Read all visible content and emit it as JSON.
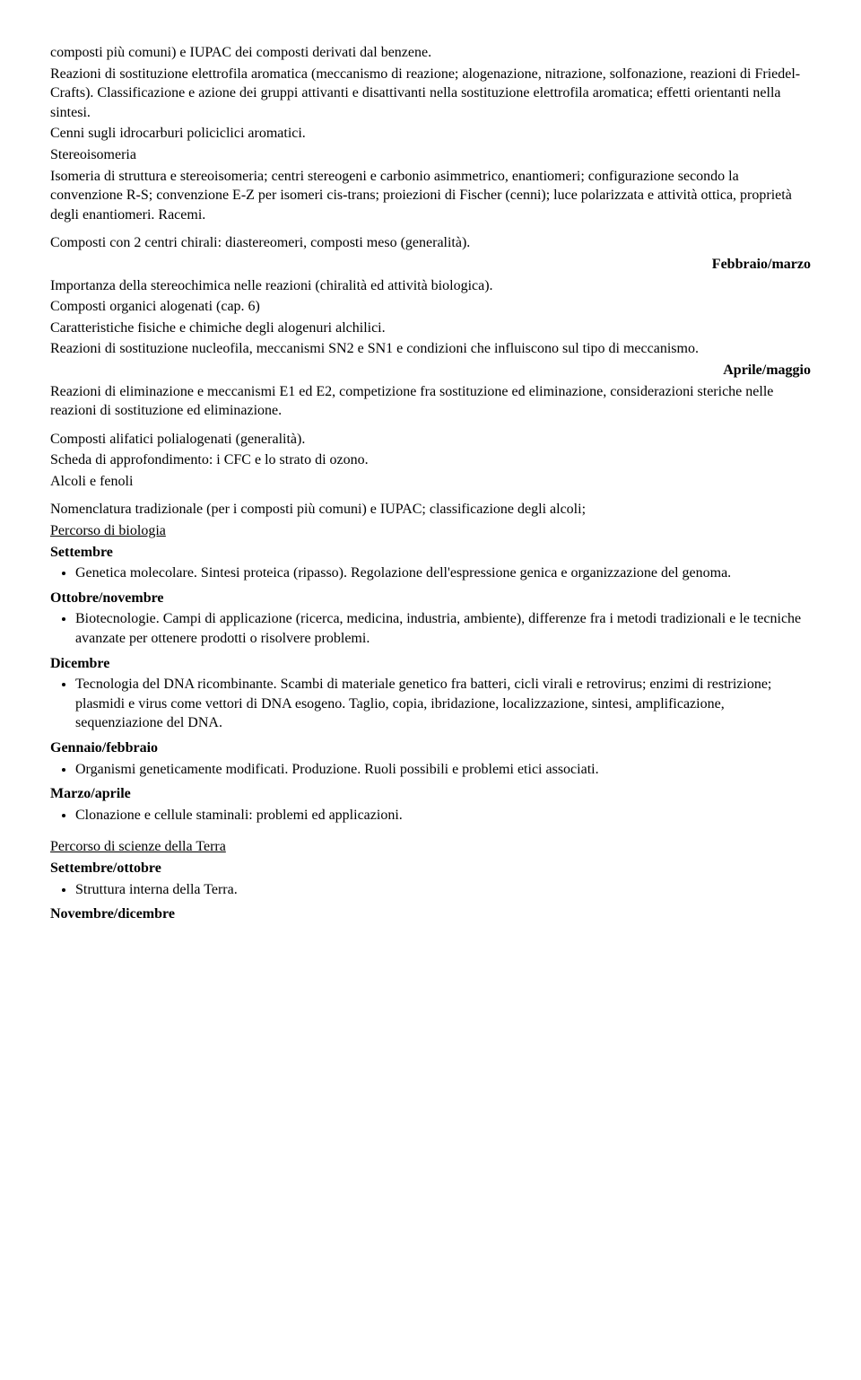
{
  "p1": "composti più comuni) e IUPAC dei composti derivati dal benzene.",
  "p2": "Reazioni di sostituzione elettrofila aromatica (meccanismo di reazione; alogenazione, nitrazione, solfonazione, reazioni di Friedel-Crafts). Classificazione e azione dei gruppi attivanti e disattivanti nella sostituzione elettrofila aromatica; effetti orientanti nella sintesi.",
  "p3": "Cenni sugli idrocarburi policiclici aromatici.",
  "p4": "Stereoisomeria",
  "p5": "Isomeria di struttura e stereoisomeria; centri stereogeni e carbonio asimmetrico, enantiomeri; configurazione secondo la convenzione R-S; convenzione E-Z per isomeri cis-trans; proiezioni di Fischer (cenni); luce polarizzata e attività ottica, proprietà degli enantiomeri. Racemi.",
  "p6": "Composti con 2 centri chirali: diastereomeri, composti meso (generalità).",
  "month1": "Febbraio/marzo",
  "p7": "Importanza della stereochimica nelle reazioni (chiralità ed attività biologica).",
  "p8": "Composti organici alogenati (cap. 6)",
  "p9": "Caratteristiche fisiche e chimiche degli alogenuri alchilici.",
  "p10": "Reazioni di sostituzione nucleofila, meccanismi SN2 e SN1 e condizioni che influiscono sul tipo di meccanismo.",
  "month2": "Aprile/maggio",
  "p11": "Reazioni di eliminazione e meccanismi E1 ed E2, competizione fra sostituzione ed eliminazione, considerazioni steriche nelle reazioni di sostituzione ed eliminazione.",
  "p12": "Composti alifatici polialogenati (generalità).",
  "p13": "Scheda di approfondimento: i CFC e lo strato di ozono.",
  "p14": "Alcoli e fenoli",
  "p15": "Nomenclatura tradizionale (per i composti più comuni) e IUPAC; classificazione degli alcoli;",
  "bio_heading": "Percorso di biologia",
  "bio_m1": "Settembre",
  "bio_li1": "Genetica molecolare. Sintesi proteica (ripasso). Regolazione dell'espressione genica e organizzazione del genoma.",
  "bio_m2": "Ottobre/novembre",
  "bio_li2": "Biotecnologie. Campi di applicazione (ricerca, medicina, industria, ambiente), differenze fra i metodi tradizionali e le tecniche avanzate per ottenere prodotti o risolvere problemi.",
  "bio_m3": "Dicembre",
  "bio_li3": "Tecnologia del DNA ricombinante. Scambi di materiale genetico fra batteri, cicli virali e retrovirus; enzimi di restrizione; plasmidi e virus come vettori di DNA esogeno. Taglio, copia, ibridazione, localizzazione, sintesi, amplificazione, sequenziazione del DNA.",
  "bio_m4": "Gennaio/febbraio",
  "bio_li4": "Organismi geneticamente modificati. Produzione. Ruoli possibili e problemi etici associati.",
  "bio_m5": "Marzo/aprile",
  "bio_li5": "Clonazione e cellule staminali: problemi ed applicazioni.",
  "terra_heading": "Percorso di scienze della Terra",
  "terra_m1": "Settembre/ottobre",
  "terra_li1": "Struttura interna della Terra.",
  "terra_m2": "Novembre/dicembre"
}
